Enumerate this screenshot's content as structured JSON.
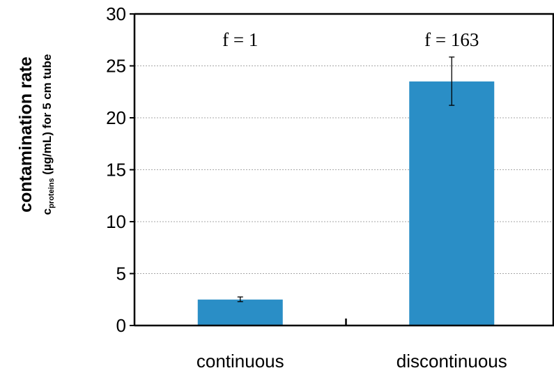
{
  "chart_data": {
    "type": "bar",
    "categories": [
      "continuous",
      "discontinuous"
    ],
    "values": [
      2.5,
      23.5
    ],
    "error_low": [
      2.3,
      21.2
    ],
    "error_high": [
      2.75,
      25.85
    ],
    "annotations": [
      "f = 1",
      "f = 163"
    ],
    "ylabel_main": "contamination rate",
    "ylabel_sub_prefix": "c",
    "ylabel_sub_subscript": "proteins",
    "ylabel_sub_rest": " (µg/mL) for 5 cm tube",
    "xlabel": "",
    "ylim": [
      0,
      30
    ],
    "yticks": [
      0,
      5,
      10,
      15,
      20,
      25,
      30
    ],
    "ytick_labels": [
      "0",
      "5",
      "10",
      "15",
      "20",
      "25",
      "30"
    ],
    "grid": true,
    "bar_color": "#2a8ec6",
    "grid_color": "#a6a6a6"
  }
}
